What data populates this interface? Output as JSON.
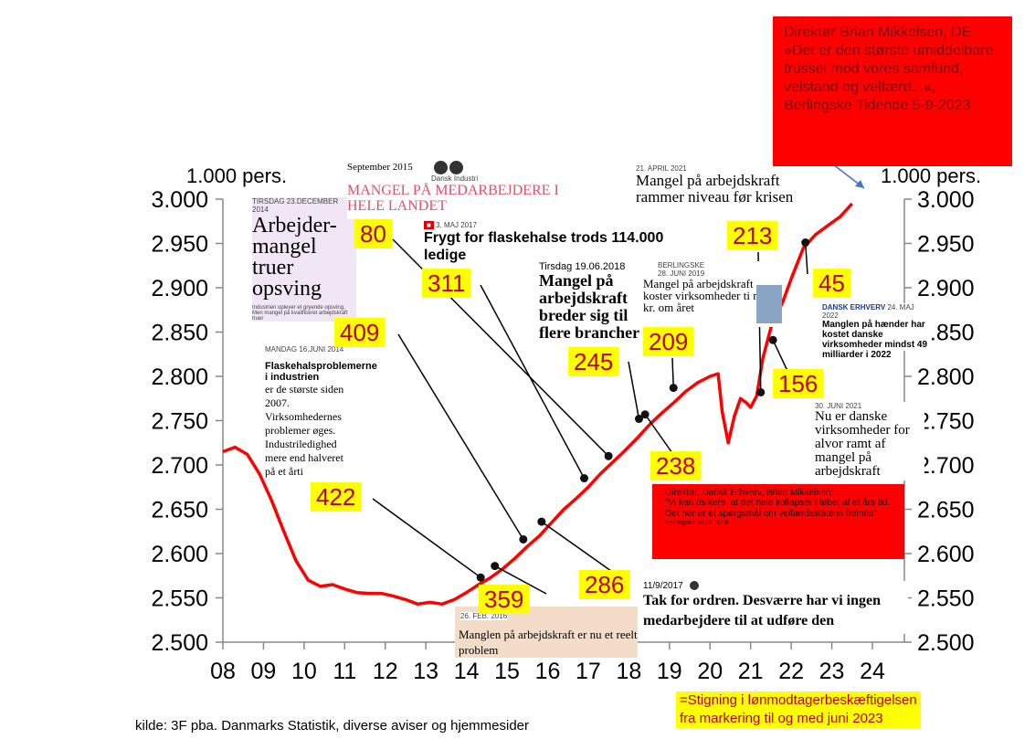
{
  "colors": {
    "line": "#ff0000",
    "highlight": "#ffff00",
    "highlight_text": "#c00000",
    "quote_box": "#ff0000"
  },
  "units": {
    "left": "1.000 pers.",
    "right": "1.000 pers."
  },
  "chart_data": {
    "type": "line",
    "x_tick_labels": [
      "08",
      "09",
      "10",
      "11",
      "12",
      "13",
      "14",
      "15",
      "16",
      "17",
      "18",
      "19",
      "20",
      "21",
      "22",
      "23",
      "24"
    ],
    "y_tick_labels": [
      "2.500",
      "2.550",
      "2.600",
      "2.650",
      "2.700",
      "2.750",
      "2.800",
      "2.850",
      "2.900",
      "2.950",
      "3.000"
    ],
    "ylim": [
      2500,
      3000
    ],
    "xlim": [
      2008,
      2024
    ],
    "series": [
      {
        "color": "#ff0000",
        "points": [
          [
            2008.0,
            2715
          ],
          [
            2008.3,
            2720
          ],
          [
            2008.6,
            2712
          ],
          [
            2008.9,
            2690
          ],
          [
            2009.2,
            2660
          ],
          [
            2009.5,
            2625
          ],
          [
            2009.8,
            2592
          ],
          [
            2010.1,
            2570
          ],
          [
            2010.4,
            2563
          ],
          [
            2010.7,
            2565
          ],
          [
            2011.0,
            2560
          ],
          [
            2011.3,
            2556
          ],
          [
            2011.6,
            2555
          ],
          [
            2011.9,
            2555
          ],
          [
            2012.2,
            2552
          ],
          [
            2012.5,
            2548
          ],
          [
            2012.8,
            2543
          ],
          [
            2013.1,
            2545
          ],
          [
            2013.4,
            2543
          ],
          [
            2013.7,
            2548
          ],
          [
            2014.0,
            2556
          ],
          [
            2014.3,
            2565
          ],
          [
            2014.6,
            2573
          ],
          [
            2014.9,
            2583
          ],
          [
            2015.2,
            2595
          ],
          [
            2015.5,
            2608
          ],
          [
            2015.8,
            2620
          ],
          [
            2016.1,
            2635
          ],
          [
            2016.4,
            2650
          ],
          [
            2016.7,
            2662
          ],
          [
            2017.0,
            2675
          ],
          [
            2017.3,
            2690
          ],
          [
            2017.6,
            2703
          ],
          [
            2017.9,
            2716
          ],
          [
            2018.2,
            2730
          ],
          [
            2018.5,
            2745
          ],
          [
            2018.8,
            2758
          ],
          [
            2019.1,
            2770
          ],
          [
            2019.4,
            2783
          ],
          [
            2019.7,
            2793
          ],
          [
            2020.0,
            2800
          ],
          [
            2020.2,
            2803
          ],
          [
            2020.3,
            2760
          ],
          [
            2020.45,
            2725
          ],
          [
            2020.6,
            2755
          ],
          [
            2020.75,
            2775
          ],
          [
            2020.9,
            2770
          ],
          [
            2021.0,
            2765
          ],
          [
            2021.15,
            2778
          ],
          [
            2021.3,
            2820
          ],
          [
            2021.5,
            2855
          ],
          [
            2021.8,
            2885
          ],
          [
            2022.0,
            2910
          ],
          [
            2022.3,
            2945
          ],
          [
            2022.6,
            2960
          ],
          [
            2022.9,
            2970
          ],
          [
            2023.2,
            2980
          ],
          [
            2023.5,
            2995
          ]
        ]
      }
    ],
    "markers": [
      {
        "x": 2014.35,
        "y": 2573,
        "label": "422"
      },
      {
        "x": 2014.7,
        "y": 2586,
        "label": "359"
      },
      {
        "x": 2015.4,
        "y": 2616,
        "label": "409"
      },
      {
        "x": 2015.85,
        "y": 2636,
        "label": "286"
      },
      {
        "x": 2016.9,
        "y": 2685,
        "label": "311"
      },
      {
        "x": 2017.5,
        "y": 2710,
        "label": "80"
      },
      {
        "x": 2018.25,
        "y": 2752,
        "label": "245"
      },
      {
        "x": 2018.4,
        "y": 2757,
        "label": "238"
      },
      {
        "x": 2019.1,
        "y": 2787,
        "label": "209"
      },
      {
        "x": 2021.25,
        "y": 2782,
        "label": "213"
      },
      {
        "x": 2021.55,
        "y": 2841,
        "label": "156"
      },
      {
        "x": 2022.35,
        "y": 2951,
        "label": "45"
      }
    ]
  },
  "clippings": {
    "c2014a": {
      "date": "TIRSDAG 23.DECEMBER 2014",
      "headline": "Arbejder-mangel truer opsving",
      "body": "Industrien oplever et gryende opsving. Men mangel på kvalificeret arbejdskraft truer"
    },
    "c2014b": {
      "date": "MANDAG 16.JUNI 2014",
      "headline": "Flaskehalsproblemerne i industrien",
      "body": "er de største siden 2007. Virksomhedernes problemer øges. Industriledighed mere end halveret på et årti"
    },
    "c2015": {
      "date": "September 2015",
      "org": "Dansk Industri",
      "headline": "MANGEL PÅ MEDARBEJDERE I HELE LANDET"
    },
    "c2017a": {
      "date": "3. MAJ 2017",
      "headline": "Frygt for flaskehalse trods 114.000 ledige"
    },
    "c2018": {
      "date": "Tirsdag 19.06.2018",
      "headline": "Mangel på arbejdskraft breder sig til flere brancher"
    },
    "c2019": {
      "source": "BERLINGSKE",
      "date": "28. JUNI 2019",
      "headline": "Mangel på arbejdskraft koster virksomheder ti mia. kr. om året"
    },
    "c2021a": {
      "date": "21. APRIL 2021",
      "headline": "Mangel på arbejdskraft rammer niveau før krisen"
    },
    "c2022": {
      "source": "DANSK ERHVERV",
      "date": "24. MAJ 2022",
      "headline": "Manglen på hænder har kostet danske virksomheder mindst 49 milliarder i 2022"
    },
    "c2021b": {
      "date": "30. JUNI 2021",
      "headline": "Nu er danske virksomheder for alvor ramt af mangel på arbejdskraft"
    },
    "c2016": {
      "date": "26. FEB. 2016",
      "headline": "Manglen på arbejdskraft er nu et reelt problem"
    },
    "c2017b": {
      "date": "11/9/2017",
      "headline": "Tak for ordren. Desværre har vi ingen medarbejdere til at udføre den"
    }
  },
  "quotes": {
    "top": "Direktør Brian Mikkelsen, DE\n»Det er den største umiddelbare\ntrussel mod vores samfund,\nvelstand og velfærd. .«,\nBerlingske Tidende 5-9-2023",
    "mid_title": "Direktør, Dansk Erhverv, Brian Mikkelsen:",
    "mid_body": "\"Vi kan risikere, at det hele kollapser i løbet af et års tid. Det her er et spørgsmål om velfærdsstatens fremtid\"",
    "mid_source": "Berlingske 24.08.2018"
  },
  "source": "kilde: 3F pba. Danmarks Statistik, diverse aviser og hjemmesider",
  "legend": "=Stigning i lønmodtagerbeskæftigelsen\nfra markering til og med juni 2023"
}
